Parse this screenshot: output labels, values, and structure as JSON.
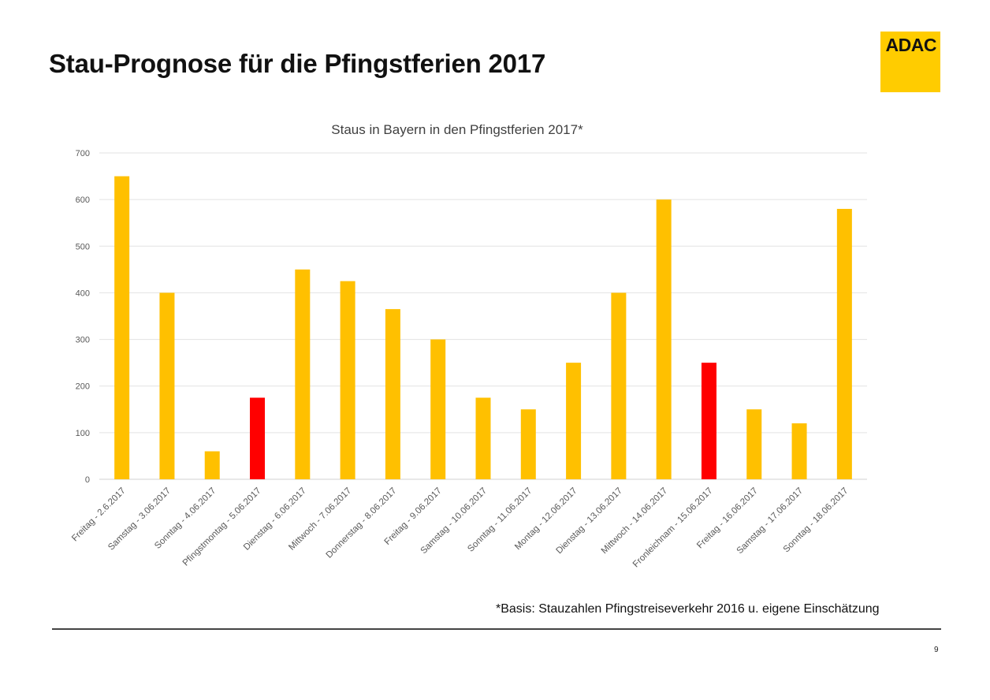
{
  "slide": {
    "title": "Stau-Prognose für die Pfingstferien 2017",
    "logo_text": "ADAC",
    "footnote": "*Basis: Stauzahlen  Pfingstreiseverkehr  2016 u.  eigene Einschätzung",
    "page_number": "9"
  },
  "colors": {
    "bar": "#ffc000",
    "bar_highlight": "#ff0000",
    "logo": "#ffcc00",
    "grid": "#e3e3e3",
    "axis_text": "#595959"
  },
  "chart_data": {
    "type": "bar",
    "title": "Staus in Bayern  in den Pfingstferien 2017*",
    "xlabel": "",
    "ylabel": "",
    "ylim": [
      0,
      700
    ],
    "yticks": [
      0,
      100,
      200,
      300,
      400,
      500,
      600,
      700
    ],
    "grid": true,
    "categories": [
      "Freitag - 2.6.2017",
      "Samstag - 3.06.2017",
      "Sonntag - 4.06.2017",
      "Pfingstmontag - 5.06.2017",
      "Dienstag - 6.06.2017",
      "Mittwoch - 7.06.2017",
      "Donnerstag - 8.06.2017",
      "Freitag - 9.06.2017",
      "Samstag - 10.06.2017",
      "Sonntag - 11.06.2017",
      "Montag - 12.06.2017",
      "Dienstag - 13.06.2017",
      "Mittwoch - 14.06.2017",
      "Fronleichnam - 15.06.2017",
      "Freitag - 16.06.2017",
      "Samstag - 17.06.2017",
      "Sonntag - 18.06.2017"
    ],
    "values": [
      650,
      400,
      60,
      175,
      450,
      425,
      365,
      300,
      175,
      150,
      250,
      400,
      600,
      250,
      150,
      120,
      580
    ],
    "highlighted": [
      false,
      false,
      false,
      true,
      false,
      false,
      false,
      false,
      false,
      false,
      false,
      false,
      false,
      true,
      false,
      false,
      false
    ]
  }
}
